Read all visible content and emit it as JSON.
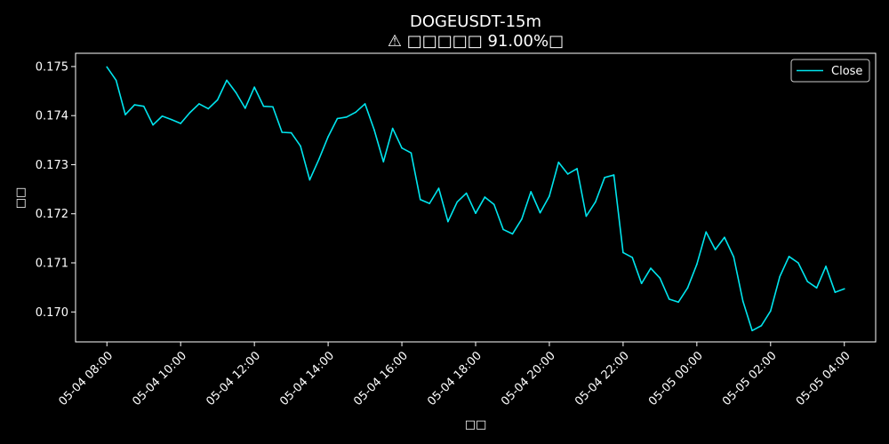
{
  "chart_data": {
    "type": "line",
    "title": "DOGEUSDT-15m",
    "subtitle": "⚠ □□□□□ 91.00%□",
    "xlabel": "□□",
    "ylabel": "□□",
    "x_start": "05-04 08:00",
    "x_step_minutes": 15,
    "xlim": [
      "05-04 07:09",
      "05-05 04:51"
    ],
    "ylim": [
      0.16939,
      0.17527
    ],
    "x_ticks": [
      "05-04 08:00",
      "05-04 10:00",
      "05-04 12:00",
      "05-04 14:00",
      "05-04 16:00",
      "05-04 18:00",
      "05-04 20:00",
      "05-04 22:00",
      "05-05 00:00",
      "05-05 02:00",
      "05-05 04:00"
    ],
    "y_ticks": [
      "0.170",
      "0.171",
      "0.172",
      "0.173",
      "0.174",
      "0.175"
    ],
    "y_tick_values": [
      0.17,
      0.171,
      0.172,
      0.173,
      0.174,
      0.175
    ],
    "grid": false,
    "legend_position": "top-right",
    "series": [
      {
        "name": "Close",
        "color": "#00e5ee",
        "values": [
          0.17499,
          0.17472,
          0.17402,
          0.17422,
          0.17419,
          0.17381,
          0.17399,
          0.17392,
          0.17384,
          0.17406,
          0.17424,
          0.17414,
          0.17432,
          0.17472,
          0.17447,
          0.17415,
          0.17458,
          0.17419,
          0.17418,
          0.17366,
          0.17365,
          0.17338,
          0.17269,
          0.17311,
          0.17357,
          0.17394,
          0.17397,
          0.17407,
          0.17424,
          0.17371,
          0.17306,
          0.17374,
          0.17334,
          0.17324,
          0.17229,
          0.17221,
          0.17252,
          0.17184,
          0.17224,
          0.17242,
          0.17201,
          0.17234,
          0.17219,
          0.17168,
          0.17159,
          0.17189,
          0.17245,
          0.17202,
          0.17236,
          0.17305,
          0.17281,
          0.17292,
          0.17195,
          0.17224,
          0.17274,
          0.17279,
          0.17121,
          0.17111,
          0.17058,
          0.17089,
          0.17069,
          0.17026,
          0.1702,
          0.17049,
          0.17097,
          0.17163,
          0.17127,
          0.17152,
          0.17112,
          0.17022,
          0.16962,
          0.16972,
          0.17002,
          0.17072,
          0.17113,
          0.171,
          0.17062,
          0.17049,
          0.17093,
          0.1704,
          0.17047
        ]
      }
    ]
  }
}
